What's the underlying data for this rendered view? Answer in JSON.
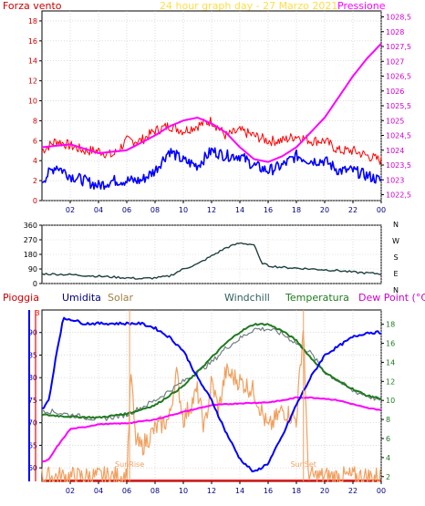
{
  "page": {
    "title": "24 hour graph day - 27 Marzo 2021",
    "background": "#ffffff",
    "colors": {
      "axis": "#000000",
      "grid": "#c8c8c8",
      "red": "#ff0000",
      "blue": "#0000ff",
      "magenta": "#ff00ff",
      "darkslate": "#204040",
      "darkgreen": "#1f7a1f",
      "grey": "#708080",
      "orange": "#f0a060",
      "title_yellow": "#ffdd44",
      "axis_right_purple": "#cc00cc",
      "tick_blue": "#000080"
    }
  },
  "chart_data": [
    {
      "type": "line",
      "title": "24 hour graph day - 27 Marzo 2021",
      "left_label": "Forza vento",
      "right_label": "Pressione",
      "x_tick_labels": [
        "02",
        "04",
        "06",
        "08",
        "10",
        "12",
        "14",
        "16",
        "18",
        "20",
        "22",
        "00"
      ],
      "y_left_ticks": [
        "0",
        "2",
        "4",
        "6",
        "8",
        "10",
        "12",
        "14",
        "16",
        "18"
      ],
      "y_left_range": [
        0,
        19
      ],
      "y_right_ticks": [
        "1022,5",
        "1023",
        "1023,5",
        "1024",
        "1024,5",
        "1025",
        "1025,5",
        "1026",
        "1026,5",
        "1027",
        "1027,5",
        "1028",
        "1028,5"
      ],
      "y_right_range": [
        1022.3,
        1028.7
      ],
      "grid": true,
      "series": [
        {
          "key": "gust",
          "axis": "left",
          "color": "#ff0000",
          "noise": 0.55,
          "knots": [
            [
              0,
              5
            ],
            [
              1,
              6
            ],
            [
              2,
              5.5
            ],
            [
              3,
              5
            ],
            [
              4,
              5
            ],
            [
              5,
              4.5
            ],
            [
              6,
              6
            ],
            [
              7,
              6
            ],
            [
              8,
              7
            ],
            [
              9,
              7.5
            ],
            [
              10,
              7
            ],
            [
              11,
              7.5
            ],
            [
              12,
              8
            ],
            [
              13,
              6.5
            ],
            [
              14,
              7
            ],
            [
              15,
              6.5
            ],
            [
              16,
              6
            ],
            [
              17,
              6
            ],
            [
              18,
              6.5
            ],
            [
              19,
              6
            ],
            [
              20,
              6
            ],
            [
              21,
              5
            ],
            [
              22,
              5
            ],
            [
              23,
              4.5
            ],
            [
              24,
              4
            ]
          ]
        },
        {
          "key": "wind",
          "axis": "left",
          "color": "#0000ff",
          "noise": 0.6,
          "knots": [
            [
              0,
              2
            ],
            [
              1,
              3.5
            ],
            [
              2,
              2.5
            ],
            [
              3,
              2
            ],
            [
              4,
              1.5
            ],
            [
              5,
              2
            ],
            [
              6,
              2
            ],
            [
              7,
              2
            ],
            [
              8,
              3
            ],
            [
              9,
              5
            ],
            [
              10,
              4
            ],
            [
              11,
              3.5
            ],
            [
              12,
              5
            ],
            [
              13,
              4.5
            ],
            [
              14,
              4.5
            ],
            [
              15,
              3.5
            ],
            [
              16,
              3
            ],
            [
              17,
              3.5
            ],
            [
              18,
              4.5
            ],
            [
              19,
              4
            ],
            [
              20,
              4
            ],
            [
              21,
              3
            ],
            [
              22,
              3
            ],
            [
              23,
              2.5
            ],
            [
              24,
              2
            ]
          ]
        },
        {
          "key": "pressure",
          "axis": "right",
          "color": "#ff00ff",
          "noise": 0.0,
          "knots": [
            [
              0,
              1024.1
            ],
            [
              2,
              1024.2
            ],
            [
              4,
              1023.9
            ],
            [
              6,
              1024.0
            ],
            [
              8,
              1024.5
            ],
            [
              9,
              1024.8
            ],
            [
              10,
              1025.0
            ],
            [
              11,
              1025.1
            ],
            [
              12,
              1024.9
            ],
            [
              13,
              1024.6
            ],
            [
              14,
              1024.1
            ],
            [
              15,
              1023.7
            ],
            [
              16,
              1023.6
            ],
            [
              17,
              1023.8
            ],
            [
              18,
              1024.1
            ],
            [
              19,
              1024.6
            ],
            [
              20,
              1025.1
            ],
            [
              21,
              1025.8
            ],
            [
              22,
              1026.5
            ],
            [
              23,
              1027.1
            ],
            [
              24,
              1027.6
            ]
          ]
        }
      ]
    },
    {
      "type": "line",
      "title": "",
      "x_tick_labels": [],
      "y_left_ticks": [
        "0",
        "90",
        "180",
        "270",
        "360"
      ],
      "y_left_range": [
        0,
        360
      ],
      "right_labels": [
        "N",
        "W",
        "S",
        "E",
        "N"
      ],
      "grid": true,
      "series": [
        {
          "key": "direction",
          "axis": "left",
          "color": "#204040",
          "noise": 0.35,
          "knots": [
            [
              0,
              60
            ],
            [
              1,
              58
            ],
            [
              2,
              55
            ],
            [
              3,
              50
            ],
            [
              4,
              45
            ],
            [
              5,
              40
            ],
            [
              6,
              35
            ],
            [
              7,
              30
            ],
            [
              8,
              35
            ],
            [
              9,
              45
            ],
            [
              10,
              90
            ],
            [
              11,
              120
            ],
            [
              12,
              170
            ],
            [
              13,
              220
            ],
            [
              14,
              250
            ],
            [
              15,
              240
            ],
            [
              15.5,
              130
            ],
            [
              16,
              110
            ],
            [
              17,
              100
            ],
            [
              18,
              95
            ],
            [
              19,
              90
            ],
            [
              20,
              85
            ],
            [
              21,
              80
            ],
            [
              22,
              70
            ],
            [
              23,
              65
            ],
            [
              24,
              60
            ]
          ]
        }
      ]
    },
    {
      "type": "line",
      "title": "",
      "legend": [
        "Pioggia",
        "Umidita",
        "Solar",
        "Windchill",
        "Temperatura",
        "Dew Point (°C)"
      ],
      "x_tick_labels": [
        "02",
        "04",
        "06",
        "08",
        "10",
        "12",
        "14",
        "16",
        "18",
        "20",
        "22",
        "00"
      ],
      "y_left_ticks": [
        "60",
        "65",
        "70",
        "75",
        "80",
        "85",
        "90"
      ],
      "y_left_range": [
        57,
        95
      ],
      "y_right_ticks": [
        "2",
        "4",
        "6",
        "8",
        "10",
        "12",
        "14",
        "16",
        "18"
      ],
      "y_right_range": [
        1.5,
        19.5
      ],
      "pioggia_value_label": "3",
      "annotations": [
        {
          "text": "SunRise",
          "hour": 6.2
        },
        {
          "text": "SunSet",
          "hour": 18.5
        }
      ],
      "grid": true,
      "series": [
        {
          "key": "humidity",
          "axis": "left",
          "color": "#0000ff",
          "noise": 0.15,
          "knots": [
            [
              0,
              73
            ],
            [
              0.5,
              75
            ],
            [
              1,
              85
            ],
            [
              1.5,
              93
            ],
            [
              2,
              93
            ],
            [
              3,
              92
            ],
            [
              4,
              92
            ],
            [
              5,
              92
            ],
            [
              6,
              92
            ],
            [
              7,
              92
            ],
            [
              8,
              91
            ],
            [
              9,
              89
            ],
            [
              10,
              86
            ],
            [
              11,
              80
            ],
            [
              12,
              75
            ],
            [
              13,
              68
            ],
            [
              14,
              62
            ],
            [
              15,
              59
            ],
            [
              16,
              61
            ],
            [
              17,
              67
            ],
            [
              18,
              74
            ],
            [
              19,
              80
            ],
            [
              20,
              85
            ],
            [
              21,
              87
            ],
            [
              22,
              89
            ],
            [
              23,
              90
            ],
            [
              24,
              90
            ]
          ]
        },
        {
          "key": "solar",
          "axis": "right",
          "color": "#f0a060",
          "noise": 1.2,
          "knots": [
            [
              0,
              2
            ],
            [
              6,
              2
            ],
            [
              6.3,
              13
            ],
            [
              6.6,
              6
            ],
            [
              7,
              5
            ],
            [
              8,
              7
            ],
            [
              9,
              8
            ],
            [
              9.5,
              13
            ],
            [
              10,
              8
            ],
            [
              11,
              11
            ],
            [
              11.5,
              7
            ],
            [
              12,
              12
            ],
            [
              12.5,
              9
            ],
            [
              13,
              13
            ],
            [
              14,
              12
            ],
            [
              15,
              11
            ],
            [
              15.5,
              9
            ],
            [
              16,
              7
            ],
            [
              17,
              9
            ],
            [
              18,
              8
            ],
            [
              18.5,
              18
            ],
            [
              18.8,
              3
            ],
            [
              19,
              2
            ],
            [
              24,
              2
            ]
          ]
        },
        {
          "key": "windchill",
          "axis": "right",
          "color": "#708080",
          "noise": 0.3,
          "knots": [
            [
              0,
              9
            ],
            [
              2,
              8.5
            ],
            [
              4,
              8
            ],
            [
              6,
              8.5
            ],
            [
              8,
              10
            ],
            [
              10,
              12
            ],
            [
              11,
              13
            ],
            [
              12,
              14
            ],
            [
              13,
              15.5
            ],
            [
              14,
              16.5
            ],
            [
              15,
              17.5
            ],
            [
              16,
              17.5
            ],
            [
              17,
              17
            ],
            [
              18,
              16
            ],
            [
              19,
              15
            ],
            [
              20,
              13
            ],
            [
              21,
              12
            ],
            [
              22,
              11
            ],
            [
              23,
              10.5
            ],
            [
              24,
              10
            ]
          ]
        },
        {
          "key": "temperature",
          "axis": "right",
          "color": "#1f7a1f",
          "noise": 0.1,
          "knots": [
            [
              0,
              8.5
            ],
            [
              2,
              8.3
            ],
            [
              4,
              8.2
            ],
            [
              6,
              8.6
            ],
            [
              8,
              9.5
            ],
            [
              10,
              11.5
            ],
            [
              11,
              13
            ],
            [
              12,
              14.5
            ],
            [
              13,
              16
            ],
            [
              14,
              17.2
            ],
            [
              15,
              18
            ],
            [
              16,
              18
            ],
            [
              17,
              17.3
            ],
            [
              18,
              16.3
            ],
            [
              19,
              14.5
            ],
            [
              20,
              13
            ],
            [
              21,
              12
            ],
            [
              22,
              11.2
            ],
            [
              23,
              10.5
            ],
            [
              24,
              10.2
            ]
          ]
        },
        {
          "key": "dewpoint",
          "axis": "right",
          "color": "#ff00ff",
          "noise": 0.05,
          "knots": [
            [
              0,
              3.5
            ],
            [
              0.5,
              3.8
            ],
            [
              1,
              5
            ],
            [
              2,
              7
            ],
            [
              3,
              7.2
            ],
            [
              4,
              7.5
            ],
            [
              6,
              7.6
            ],
            [
              8,
              8
            ],
            [
              10,
              8.8
            ],
            [
              12,
              9.5
            ],
            [
              14,
              9.7
            ],
            [
              16,
              9.8
            ],
            [
              17,
              10
            ],
            [
              18,
              10.3
            ],
            [
              19,
              10.3
            ],
            [
              20,
              10.2
            ],
            [
              21,
              10
            ],
            [
              22,
              9.6
            ],
            [
              23,
              9.2
            ],
            [
              24,
              9
            ]
          ]
        }
      ]
    }
  ]
}
